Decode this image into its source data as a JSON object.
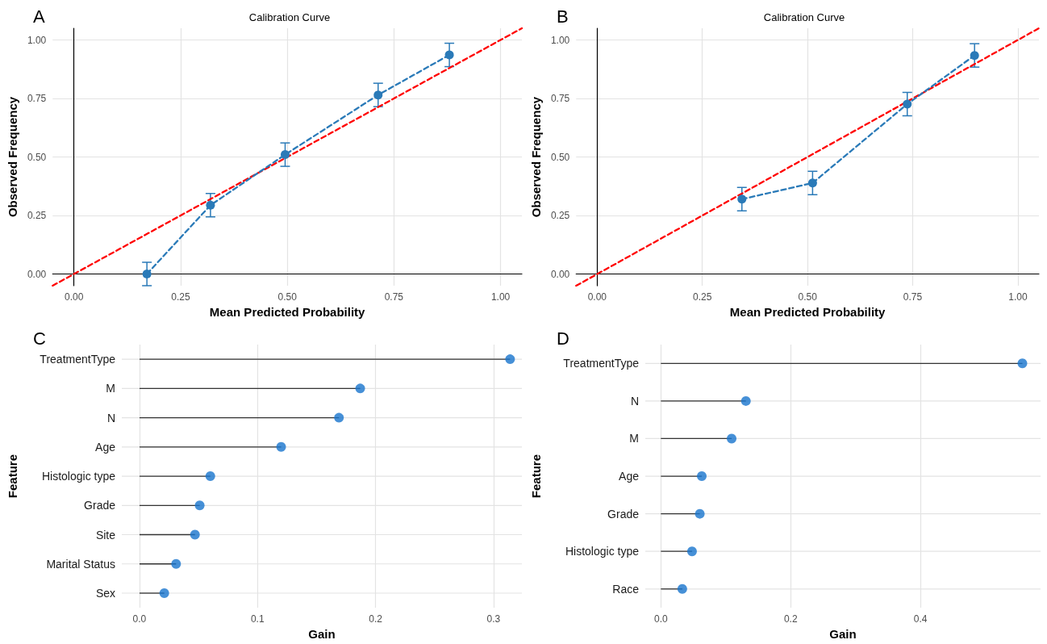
{
  "chart_data": [
    {
      "type": "line",
      "title": "Calibration Curve",
      "annotations": [
        "A"
      ],
      "xlabel": "Mean Predicted Probability",
      "ylabel": "Observed Frequency",
      "xlim": [
        -0.05,
        1.05
      ],
      "ylim": [
        -0.05,
        1.05
      ],
      "xticks": [
        {
          "value": 0,
          "label": "0.00"
        },
        {
          "value": 0.25,
          "label": "0.25"
        },
        {
          "value": 0.5,
          "label": "0.50"
        },
        {
          "value": 0.75,
          "label": "0.75"
        },
        {
          "value": 1,
          "label": "1.00"
        }
      ],
      "yticks": [
        {
          "value": 0,
          "label": "0.00"
        },
        {
          "value": 0.25,
          "label": "0.25"
        },
        {
          "value": 0.5,
          "label": "0.50"
        },
        {
          "value": 0.75,
          "label": "0.75"
        },
        {
          "value": 1,
          "label": "1.00"
        }
      ],
      "grid": true,
      "series": [
        {
          "type": "line",
          "color": "#ff0000",
          "marker": "none",
          "line_style": "dashed",
          "x": [
            -0.05,
            1.05
          ],
          "values": [
            -0.05,
            1.05
          ]
        },
        {
          "type": "line",
          "color": "#2a7ab8",
          "marker": "circle",
          "line_style": "dashed",
          "x": [
            0.171,
            0.32,
            0.495,
            0.713,
            0.88
          ],
          "values": [
            0,
            0.294,
            0.51,
            0.765,
            0.936
          ],
          "errors": [
            0.05,
            0.05,
            0.05,
            0.05,
            0.05
          ]
        }
      ]
    },
    {
      "type": "line",
      "title": "Calibration Curve",
      "annotations": [
        "B"
      ],
      "xlabel": "Mean Predicted Probability",
      "ylabel": "Observed Frequency",
      "xlim": [
        -0.05,
        1.05
      ],
      "ylim": [
        -0.05,
        1.05
      ],
      "xticks": [
        {
          "value": 0,
          "label": "0.00"
        },
        {
          "value": 0.25,
          "label": "0.25"
        },
        {
          "value": 0.5,
          "label": "0.50"
        },
        {
          "value": 0.75,
          "label": "0.75"
        },
        {
          "value": 1,
          "label": "1.00"
        }
      ],
      "yticks": [
        {
          "value": 0,
          "label": "0.00"
        },
        {
          "value": 0.25,
          "label": "0.25"
        },
        {
          "value": 0.5,
          "label": "0.50"
        },
        {
          "value": 0.75,
          "label": "0.75"
        },
        {
          "value": 1,
          "label": "1.00"
        }
      ],
      "grid": true,
      "series": [
        {
          "type": "line",
          "color": "#ff0000",
          "marker": "none",
          "line_style": "dashed",
          "x": [
            -0.05,
            1.05
          ],
          "values": [
            -0.05,
            1.05
          ]
        },
        {
          "type": "line",
          "color": "#2a7ab8",
          "marker": "circle",
          "line_style": "dashed",
          "x": [
            0.344,
            0.512,
            0.737,
            0.897
          ],
          "values": [
            0.32,
            0.389,
            0.726,
            0.934
          ],
          "errors": [
            0.05,
            0.05,
            0.05,
            0.05
          ]
        }
      ]
    },
    {
      "type": "lollipop",
      "orientation": "horizontal",
      "annotations": [
        "C"
      ],
      "xlabel": "Gain",
      "ylabel": "Feature",
      "categories": [
        "TreatmentType",
        "M",
        "N",
        "Age",
        "Histologic type",
        "Grade",
        "Site",
        "Marital Status",
        "Sex"
      ],
      "values": [
        0.314,
        0.187,
        0.169,
        0.12,
        0.06,
        0.051,
        0.047,
        0.031,
        0.021
      ],
      "color": "#1874cd",
      "xlim": [
        -0.015,
        0.324
      ],
      "xticks": [
        {
          "value": 0,
          "label": "0.0"
        },
        0.1,
        0.2,
        0.3
      ],
      "grid": true
    },
    {
      "type": "lollipop",
      "orientation": "horizontal",
      "annotations": [
        "D"
      ],
      "xlabel": "Gain",
      "ylabel": "Feature",
      "categories": [
        "TreatmentType",
        "N",
        "M",
        "Age",
        "Grade",
        "Histologic type",
        "Race"
      ],
      "values": [
        0.557,
        0.131,
        0.109,
        0.063,
        0.06,
        0.048,
        0.033
      ],
      "color": "#1874cd",
      "xlim": [
        -0.024,
        0.585
      ],
      "xticks": [
        {
          "value": 0,
          "label": "0.0"
        },
        0.2,
        0.4
      ],
      "grid": true
    }
  ]
}
